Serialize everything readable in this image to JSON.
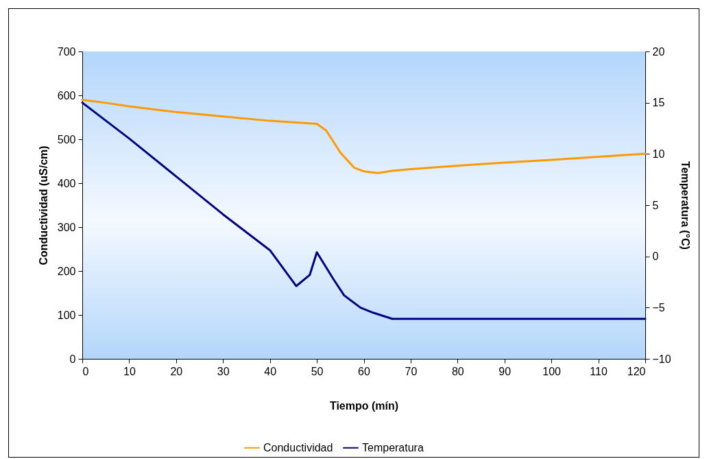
{
  "chart_data": {
    "type": "line",
    "xlabel": "Tiempo (mín)",
    "ylabel": "Conductividad (uS/cm)",
    "y2label": "Temperatura (°C)",
    "xlim": [
      0,
      120
    ],
    "xticks": [
      0,
      10,
      20,
      30,
      40,
      50,
      60,
      70,
      80,
      90,
      100,
      110,
      120
    ],
    "ylim": [
      0,
      700
    ],
    "yticks": [
      0,
      100,
      200,
      300,
      400,
      500,
      600,
      700
    ],
    "y2lim": [
      -10,
      20
    ],
    "y2ticks": [
      -10,
      -5,
      0,
      5,
      10,
      15,
      20
    ],
    "grid": false,
    "legend": "bottom",
    "line_style": "solid",
    "series": [
      {
        "name": "Conductividad",
        "color": "#ff9900",
        "x": [
          0,
          5,
          10,
          20,
          30,
          40,
          50,
          52,
          55,
          58,
          60,
          63,
          66,
          70,
          80,
          90,
          100,
          110,
          120
        ],
        "values": [
          590,
          583,
          575,
          562,
          552,
          542,
          535,
          520,
          470,
          435,
          427,
          423,
          428,
          432,
          440,
          447,
          453,
          460,
          467
        ]
      },
      {
        "name": "Temperatura",
        "color": "#000080",
        "axis": "y2",
        "x": [
          0,
          10,
          20,
          30,
          40,
          45.6,
          48.5,
          50,
          53.5,
          55.8,
          59.3,
          62,
          66.1,
          80,
          100,
          120
        ],
        "values": [
          15,
          11.5,
          7.8,
          4.1,
          0.6,
          -2.9,
          -1.8,
          0.4,
          -2.2,
          -3.8,
          -5.0,
          -5.5,
          -6.1,
          -6.1,
          -6.1,
          -6.1
        ]
      }
    ]
  }
}
